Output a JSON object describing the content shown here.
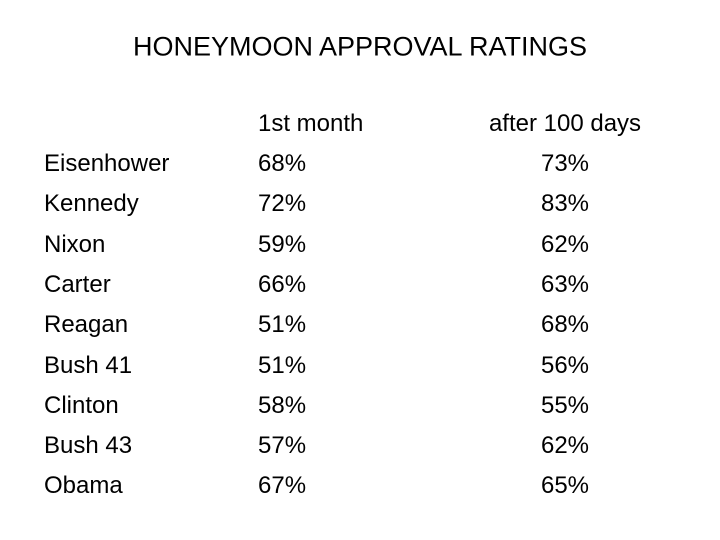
{
  "header": {
    "title": "HONEYMOON APPROVAL RATINGS"
  },
  "table": {
    "columns": [
      "",
      "1st month",
      "after 100 days"
    ],
    "rows": [
      [
        "Eisenhower",
        "68%",
        "73%"
      ],
      [
        "Kennedy",
        "72%",
        "83%"
      ],
      [
        "Nixon",
        "59%",
        "62%"
      ],
      [
        "Carter",
        "66%",
        "63%"
      ],
      [
        "Reagan",
        "51%",
        "68%"
      ],
      [
        "Bush 41",
        "51%",
        "56%"
      ],
      [
        "Clinton",
        "58%",
        "55%"
      ],
      [
        "Bush 43",
        "57%",
        "62%"
      ],
      [
        "Obama",
        "67%",
        "65%"
      ]
    ]
  }
}
